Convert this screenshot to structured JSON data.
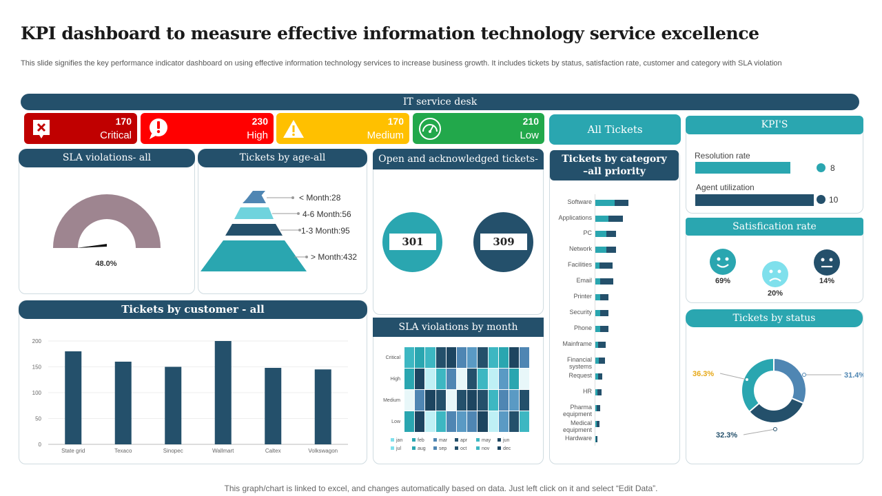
{
  "header": {
    "title": "KPI dashboard to measure effective information technology service excellence",
    "subtitle": "This slide signifies the key performance indicator dashboard on using effective information technology services to increase business growth. It includes tickets by status, satisfaction rate, customer and category with SLA violation"
  },
  "banner": "IT service desk",
  "tiles": [
    {
      "value": "170",
      "label": "Critical",
      "color": "#c00000"
    },
    {
      "value": "230",
      "label": "High",
      "color": "#ff0000"
    },
    {
      "value": "170",
      "label": "Medium",
      "color": "#ffc000"
    },
    {
      "value": "210",
      "label": "Low",
      "color": "#22a84b"
    }
  ],
  "all_tickets": "All Tickets",
  "panels": {
    "sla_all": "SLA violations- all",
    "age": "Tickets by age-all",
    "open": "Open and acknowledged tickets-all",
    "category": "Tickets by category –all priority",
    "kpis": "KPI'S",
    "customer": "Tickets by customer - all",
    "sla_month": "SLA violations by month",
    "satisfaction": "Satisfication rate",
    "status": "Tickets by status"
  },
  "sla_gauge": {
    "value": 48.0,
    "label": "48.0%"
  },
  "age_tiers": [
    {
      "label": "< Month:28"
    },
    {
      "label": "4-6 Month:56"
    },
    {
      "label": "1-3 Month:95"
    },
    {
      "label": "> Month:432"
    }
  ],
  "open_ack": {
    "open": "301",
    "ack": "309"
  },
  "kpi_bars": [
    {
      "label": "Resolution rate",
      "value": 8,
      "display": "8"
    },
    {
      "label": "Agent utilization",
      "value": 10,
      "display": "10"
    }
  ],
  "satisfaction": [
    {
      "label": "69%"
    },
    {
      "label": "20%"
    },
    {
      "label": "14%"
    }
  ],
  "chart_data": [
    {
      "type": "bar",
      "title": "Tickets by customer - all",
      "categories": [
        "State grid",
        "Texaco",
        "Sinopec",
        "Wallmart",
        "Caltex",
        "Volkswagon"
      ],
      "values": [
        180,
        160,
        150,
        200,
        148,
        145
      ],
      "ylim": [
        0,
        200
      ],
      "yticks": [
        "0",
        "50",
        "100",
        "150",
        "200"
      ]
    },
    {
      "type": "bar",
      "title": "Tickets by category –all priority",
      "orientation": "horizontal",
      "categories": [
        "Software",
        "Applications",
        "PC",
        "Network",
        "Facilities",
        "Email",
        "Printer",
        "Security",
        "Phone",
        "Mainframe",
        "Financial systems",
        "Request",
        "HR",
        "Pharma equipment",
        "Medical equipment",
        "Hardware"
      ],
      "series": [
        {
          "name": "A",
          "values": [
            28,
            19,
            16,
            16,
            6,
            7,
            7,
            7,
            7,
            4,
            5,
            4,
            3,
            2,
            2,
            1
          ]
        },
        {
          "name": "B",
          "values": [
            20,
            21,
            14,
            14,
            19,
            19,
            12,
            12,
            12,
            11,
            9,
            6,
            6,
            5,
            4,
            2
          ]
        }
      ]
    },
    {
      "type": "heatmap",
      "title": "SLA violations by month",
      "rows": [
        "Critical",
        "High",
        "Medium",
        "Low"
      ],
      "months": [
        "jan",
        "feb",
        "mar",
        "apr",
        "may",
        "jun",
        "jul",
        "aug",
        "sep",
        "oct",
        "nov",
        "dec"
      ],
      "legend_order": [
        "jan",
        "feb",
        "mar",
        "apr",
        "may",
        "jun",
        "jul",
        "aug",
        "sep",
        "oct",
        "nov",
        "dec"
      ],
      "values": [
        [
          1,
          1,
          1,
          2,
          2,
          3,
          3,
          2,
          1,
          1,
          2,
          3
        ],
        [
          1,
          2,
          0,
          1,
          3,
          0,
          2,
          1,
          0,
          3,
          1,
          0
        ],
        [
          0,
          3,
          2,
          2,
          0,
          2,
          2,
          2,
          1,
          3,
          3,
          2
        ],
        [
          1,
          2,
          0,
          1,
          3,
          3,
          3,
          2,
          0,
          3,
          2,
          1
        ]
      ]
    },
    {
      "type": "pie",
      "title": "Tickets by status",
      "donut": true,
      "values": [
        31.4,
        32.3,
        36.3
      ],
      "labels": [
        "31.4%",
        "32.3%",
        "36.3%"
      ],
      "colors": [
        "#4f86b3",
        "#24506b",
        "#2aa6b0"
      ],
      "label_colors": [
        "#4f86b3",
        "#24506b",
        "#e6a817"
      ]
    }
  ],
  "footer": "This graph/chart is linked to excel,  and changes automatically based on data. Just left click on it and select “Edit Data”."
}
